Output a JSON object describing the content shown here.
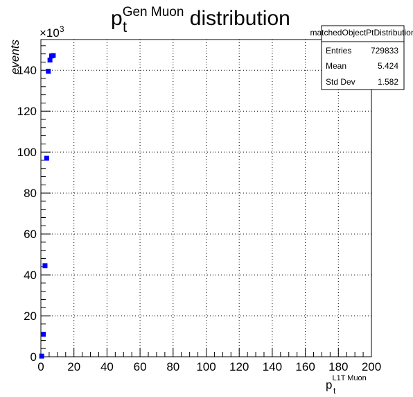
{
  "chart_data": {
    "type": "scatter",
    "title": {
      "base": "p",
      "sub": "t",
      "sup": "Gen Muon",
      "rest": " distribution"
    },
    "xlabel": {
      "base": "p",
      "sub": "t",
      "sup": "L1T Muon"
    },
    "ylabel": "events",
    "y_multiplier": {
      "base": "×10",
      "exp": "3"
    },
    "xlim": [
      0,
      200
    ],
    "ylim": [
      0,
      155
    ],
    "x_ticks": [
      "0",
      "20",
      "40",
      "60",
      "80",
      "100",
      "120",
      "140",
      "160",
      "180",
      "200"
    ],
    "y_ticks": [
      "0",
      "20",
      "40",
      "60",
      "80",
      "100",
      "120",
      "140"
    ],
    "grid": true,
    "marker_color": "#0000ff",
    "series": [
      {
        "x": [
          0.5,
          1.5,
          2.5,
          3.5,
          4.5,
          5.5,
          6.5,
          7.5
        ],
        "y": [
          0.3,
          11.0,
          44.5,
          97.0,
          139.5,
          145.0,
          147.0,
          147.2
        ]
      }
    ],
    "stats_box": {
      "name": "matchedObjectPtDistribution",
      "rows": [
        {
          "label": "Entries",
          "value": "729833"
        },
        {
          "label": "Mean",
          "value": "5.424"
        },
        {
          "label": "Std Dev",
          "value": "1.582"
        }
      ]
    }
  }
}
